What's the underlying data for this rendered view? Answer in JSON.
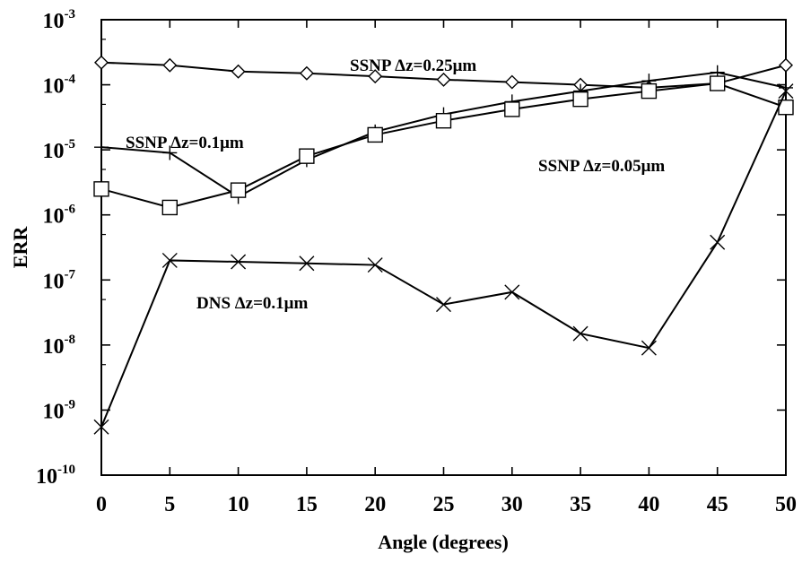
{
  "chart_data": {
    "type": "line",
    "xlabel": "Angle (degrees)",
    "ylabel": "ERR",
    "xlim": [
      0,
      50
    ],
    "ylim": [
      1e-10,
      0.001
    ],
    "y_scale": "log",
    "grid": false,
    "legend": "none",
    "x_ticks": [
      "0",
      "5",
      "10",
      "15",
      "20",
      "25",
      "30",
      "35",
      "40",
      "45",
      "50"
    ],
    "y_ticks": [
      {
        "base": "10",
        "exp": "-3"
      },
      {
        "base": "10",
        "exp": "-4"
      },
      {
        "base": "10",
        "exp": "-5"
      },
      {
        "base": "10",
        "exp": "-6"
      },
      {
        "base": "10",
        "exp": "-7"
      },
      {
        "base": "10",
        "exp": "-8"
      },
      {
        "base": "10",
        "exp": "-9"
      },
      {
        "base": "10",
        "exp": "-10"
      }
    ],
    "x": [
      0,
      5,
      10,
      15,
      20,
      25,
      30,
      35,
      40,
      45,
      50
    ],
    "series": [
      {
        "name": "SSNP Δz=0.25μm",
        "marker": "diamond",
        "values": [
          0.00022,
          0.0002,
          0.00016,
          0.00015,
          0.000135,
          0.00012,
          0.00011,
          0.0001,
          9e-05,
          0.000105,
          0.0002
        ]
      },
      {
        "name": "SSNP Δz=0.1μm",
        "marker": "plus",
        "values": [
          1.1e-05,
          9e-06,
          1.9e-06,
          7e-06,
          1.9e-05,
          3.5e-05,
          5.5e-05,
          8e-05,
          0.000115,
          0.000155,
          9e-05
        ]
      },
      {
        "name": "SSNP Δz=0.05μm",
        "marker": "square",
        "values": [
          2.5e-06,
          1.3e-06,
          2.4e-06,
          8e-06,
          1.7e-05,
          2.8e-05,
          4.2e-05,
          6e-05,
          8e-05,
          0.000105,
          4.5e-05
        ]
      },
      {
        "name": "DNS Δz=0.1μm",
        "marker": "x",
        "values": [
          5.5e-10,
          2e-07,
          1.9e-07,
          1.8e-07,
          1.7e-07,
          4.2e-08,
          6.5e-08,
          1.5e-08,
          9e-09,
          3.8e-07,
          8e-05
        ]
      }
    ],
    "annotations": [
      {
        "text": "SSNP Δz=0.25μm",
        "series": 0
      },
      {
        "text": "SSNP Δz=0.1μm",
        "series": 1
      },
      {
        "text": "SSNP Δz=0.05μm",
        "series": 2
      },
      {
        "text": "DNS Δz=0.1μm",
        "series": 3
      }
    ]
  }
}
